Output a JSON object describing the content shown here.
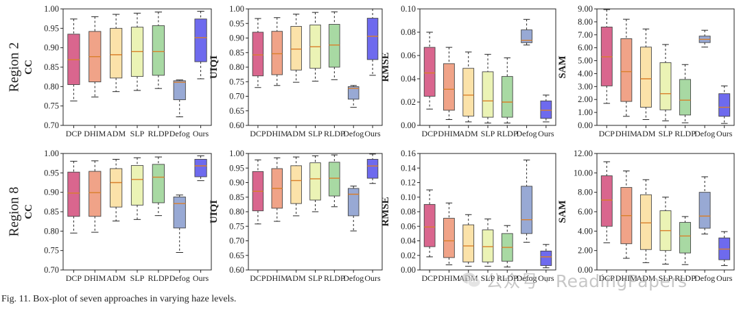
{
  "figure": {
    "caption": "Fig. 11.   Box-plot of seven approaches in varying haze levels.",
    "watermark": "公众号 · ReadingPapers"
  },
  "chart_data": [
    {
      "type": "box",
      "row_label": "Region 2",
      "ylabel": "CC",
      "ylim": [
        0.7,
        1.0
      ],
      "yticks": [
        "0.70",
        "0.75",
        "0.80",
        "0.85",
        "0.90",
        "0.95",
        "1.00"
      ],
      "tickvals": [
        0.7,
        0.75,
        0.8,
        0.85,
        0.9,
        0.95,
        1.0
      ],
      "categories": [
        "DCP",
        "DHIM",
        "ADM",
        "SLP",
        "RLDP",
        "Defog",
        "Ours"
      ],
      "boxes": [
        {
          "min": 0.763,
          "q1": 0.805,
          "median": 0.869,
          "q3": 0.935,
          "max": 0.974
        },
        {
          "min": 0.773,
          "q1": 0.812,
          "median": 0.877,
          "q3": 0.942,
          "max": 0.98
        },
        {
          "min": 0.787,
          "q1": 0.822,
          "median": 0.882,
          "q3": 0.95,
          "max": 0.986
        },
        {
          "min": 0.79,
          "q1": 0.826,
          "median": 0.89,
          "q3": 0.953,
          "max": 0.989
        },
        {
          "min": 0.795,
          "q1": 0.829,
          "median": 0.89,
          "q3": 0.957,
          "max": 0.992
        },
        {
          "min": 0.722,
          "q1": 0.766,
          "median": 0.811,
          "q3": 0.815,
          "max": 0.817
        },
        {
          "min": 0.82,
          "q1": 0.864,
          "median": 0.926,
          "q3": 0.974,
          "max": 0.994
        }
      ]
    },
    {
      "type": "box",
      "row_label": "Region 2",
      "ylabel": "UIQI",
      "ylim": [
        0.6,
        1.0
      ],
      "yticks": [
        "0.60",
        "0.65",
        "0.70",
        "0.75",
        "0.80",
        "0.85",
        "0.90",
        "0.95",
        "1.00"
      ],
      "tickvals": [
        0.6,
        0.65,
        0.7,
        0.75,
        0.8,
        0.85,
        0.9,
        0.95,
        1.0
      ],
      "categories": [
        "DCP",
        "DHIM",
        "ADM",
        "SLP",
        "RLDP",
        "Defog",
        "Ours"
      ],
      "boxes": [
        {
          "min": 0.73,
          "q1": 0.77,
          "median": 0.842,
          "q3": 0.92,
          "max": 0.967
        },
        {
          "min": 0.737,
          "q1": 0.774,
          "median": 0.846,
          "q3": 0.923,
          "max": 0.97
        },
        {
          "min": 0.748,
          "q1": 0.79,
          "median": 0.862,
          "q3": 0.94,
          "max": 0.982
        },
        {
          "min": 0.752,
          "q1": 0.796,
          "median": 0.87,
          "q3": 0.945,
          "max": 0.988
        },
        {
          "min": 0.757,
          "q1": 0.8,
          "median": 0.876,
          "q3": 0.947,
          "max": 0.99
        },
        {
          "min": 0.662,
          "q1": 0.69,
          "median": 0.727,
          "q3": 0.733,
          "max": 0.737
        },
        {
          "min": 0.772,
          "q1": 0.826,
          "median": 0.906,
          "q3": 0.968,
          "max": 1.0
        }
      ]
    },
    {
      "type": "box",
      "row_label": "Region 2",
      "ylabel": "RMSE",
      "ylim": [
        0.0,
        0.1
      ],
      "yticks": [
        "0.00",
        "0.02",
        "0.04",
        "0.06",
        "0.08",
        "0.10"
      ],
      "tickvals": [
        0.0,
        0.02,
        0.04,
        0.06,
        0.08,
        0.1
      ],
      "categories": [
        "DCP",
        "DHIM",
        "ADM",
        "SLP",
        "RLDP",
        "Defog",
        "Ours"
      ],
      "boxes": [
        {
          "min": 0.014,
          "q1": 0.025,
          "median": 0.045,
          "q3": 0.067,
          "max": 0.08
        },
        {
          "min": 0.005,
          "q1": 0.013,
          "median": 0.031,
          "q3": 0.053,
          "max": 0.067
        },
        {
          "min": 0.003,
          "q1": 0.008,
          "median": 0.026,
          "q3": 0.049,
          "max": 0.063
        },
        {
          "min": 0.002,
          "q1": 0.007,
          "median": 0.021,
          "q3": 0.046,
          "max": 0.061
        },
        {
          "min": 0.002,
          "q1": 0.007,
          "median": 0.02,
          "q3": 0.042,
          "max": 0.058
        },
        {
          "min": 0.069,
          "q1": 0.071,
          "median": 0.073,
          "q3": 0.082,
          "max": 0.091
        },
        {
          "min": 0.003,
          "q1": 0.006,
          "median": 0.013,
          "q3": 0.021,
          "max": 0.026
        }
      ]
    },
    {
      "type": "box",
      "row_label": "Region 2",
      "ylabel": "SAM",
      "ylim": [
        0.0,
        9.0
      ],
      "yticks": [
        "0.00",
        "1.00",
        "2.00",
        "3.00",
        "4.00",
        "5.00",
        "6.00",
        "7.00",
        "8.00",
        "9.00"
      ],
      "tickvals": [
        0,
        1,
        2,
        3,
        4,
        5,
        6,
        7,
        8,
        9
      ],
      "categories": [
        "DCP",
        "DHIM",
        "ADM",
        "SLP",
        "RLDP",
        "Defog",
        "Ours"
      ],
      "boxes": [
        {
          "min": 1.7,
          "q1": 3.05,
          "median": 5.3,
          "q3": 7.6,
          "max": 8.95
        },
        {
          "min": 0.7,
          "q1": 1.85,
          "median": 4.15,
          "q3": 6.7,
          "max": 8.2
        },
        {
          "min": 0.45,
          "q1": 1.4,
          "median": 3.6,
          "q3": 6.05,
          "max": 7.45
        },
        {
          "min": 0.35,
          "q1": 1.2,
          "median": 2.45,
          "q3": 4.85,
          "max": 6.25
        },
        {
          "min": 0.2,
          "q1": 0.8,
          "median": 1.95,
          "q3": 3.55,
          "max": 4.7
        },
        {
          "min": 6.05,
          "q1": 6.4,
          "median": 6.65,
          "q3": 6.9,
          "max": 7.35
        },
        {
          "min": 0.15,
          "q1": 0.7,
          "median": 1.4,
          "q3": 2.45,
          "max": 3.05
        }
      ]
    },
    {
      "type": "box",
      "row_label": "Region 8",
      "ylabel": "CC",
      "ylim": [
        0.7,
        1.0
      ],
      "yticks": [
        "0.70",
        "0.75",
        "0.80",
        "0.85",
        "0.90",
        "0.95",
        "1.00"
      ],
      "tickvals": [
        0.7,
        0.75,
        0.8,
        0.85,
        0.9,
        0.95,
        1.0
      ],
      "categories": [
        "DCP",
        "DHIM",
        "ADM",
        "SLP",
        "RLDP",
        "Defog",
        "Ours"
      ],
      "boxes": [
        {
          "min": 0.795,
          "q1": 0.838,
          "median": 0.898,
          "q3": 0.952,
          "max": 0.98
        },
        {
          "min": 0.797,
          "q1": 0.838,
          "median": 0.899,
          "q3": 0.954,
          "max": 0.981
        },
        {
          "min": 0.826,
          "q1": 0.862,
          "median": 0.925,
          "q3": 0.961,
          "max": 0.985
        },
        {
          "min": 0.83,
          "q1": 0.867,
          "median": 0.933,
          "q3": 0.969,
          "max": 0.989
        },
        {
          "min": 0.84,
          "q1": 0.873,
          "median": 0.939,
          "q3": 0.972,
          "max": 0.991
        },
        {
          "min": 0.745,
          "q1": 0.808,
          "median": 0.871,
          "q3": 0.888,
          "max": 0.893
        },
        {
          "min": 0.93,
          "q1": 0.94,
          "median": 0.968,
          "q3": 0.985,
          "max": 0.994
        }
      ]
    },
    {
      "type": "box",
      "row_label": "Region 8",
      "ylabel": "UIQI",
      "ylim": [
        0.6,
        1.0
      ],
      "yticks": [
        "0.60",
        "0.65",
        "0.70",
        "0.75",
        "0.80",
        "0.85",
        "0.90",
        "0.95",
        "1.00"
      ],
      "tickvals": [
        0.6,
        0.65,
        0.7,
        0.75,
        0.8,
        0.85,
        0.9,
        0.95,
        1.0
      ],
      "categories": [
        "DCP",
        "DHIM",
        "ADM",
        "SLP",
        "RLDP",
        "Defog",
        "Ours"
      ],
      "boxes": [
        {
          "min": 0.758,
          "q1": 0.803,
          "median": 0.87,
          "q3": 0.938,
          "max": 0.978
        },
        {
          "min": 0.767,
          "q1": 0.812,
          "median": 0.88,
          "q3": 0.948,
          "max": 0.985
        },
        {
          "min": 0.786,
          "q1": 0.828,
          "median": 0.907,
          "q3": 0.958,
          "max": 0.988
        },
        {
          "min": 0.8,
          "q1": 0.84,
          "median": 0.913,
          "q3": 0.968,
          "max": 0.992
        },
        {
          "min": 0.817,
          "q1": 0.854,
          "median": 0.915,
          "q3": 0.97,
          "max": 0.995
        },
        {
          "min": 0.734,
          "q1": 0.786,
          "median": 0.86,
          "q3": 0.88,
          "max": 0.888
        },
        {
          "min": 0.897,
          "q1": 0.915,
          "median": 0.957,
          "q3": 0.98,
          "max": 0.998
        }
      ]
    },
    {
      "type": "box",
      "row_label": "Region 8",
      "ylabel": "RMSE",
      "ylim": [
        0.0,
        0.16
      ],
      "yticks": [
        "0.00",
        "0.02",
        "0.04",
        "0.06",
        "0.08",
        "0.10",
        "0.12",
        "0.14",
        "0.16"
      ],
      "tickvals": [
        0.0,
        0.02,
        0.04,
        0.06,
        0.08,
        0.1,
        0.12,
        0.14,
        0.16
      ],
      "categories": [
        "DCP",
        "DHIM",
        "ADM",
        "SLP",
        "RLDP",
        "Defog",
        "Ours"
      ],
      "boxes": [
        {
          "min": 0.018,
          "q1": 0.032,
          "median": 0.059,
          "q3": 0.09,
          "max": 0.11
        },
        {
          "min": 0.007,
          "q1": 0.017,
          "median": 0.04,
          "q3": 0.071,
          "max": 0.092
        },
        {
          "min": 0.005,
          "q1": 0.011,
          "median": 0.033,
          "q3": 0.062,
          "max": 0.076
        },
        {
          "min": 0.005,
          "q1": 0.011,
          "median": 0.032,
          "q3": 0.055,
          "max": 0.07
        },
        {
          "min": 0.004,
          "q1": 0.012,
          "median": 0.031,
          "q3": 0.05,
          "max": 0.061
        },
        {
          "min": 0.038,
          "q1": 0.05,
          "median": 0.069,
          "q3": 0.115,
          "max": 0.151
        },
        {
          "min": 0.003,
          "q1": 0.006,
          "median": 0.018,
          "q3": 0.026,
          "max": 0.035
        }
      ]
    },
    {
      "type": "box",
      "row_label": "Region 8",
      "ylabel": "SAM",
      "ylim": [
        0.0,
        12.0
      ],
      "yticks": [
        "0.00",
        "2.00",
        "4.00",
        "6.00",
        "8.00",
        "10.00",
        "12.00"
      ],
      "tickvals": [
        0,
        2,
        4,
        6,
        8,
        10,
        12
      ],
      "categories": [
        "DCP",
        "DHIM",
        "ADM",
        "SLP",
        "RLDP",
        "Defog",
        "Ours"
      ],
      "boxes": [
        {
          "min": 2.8,
          "q1": 4.5,
          "median": 7.2,
          "q3": 9.7,
          "max": 11.15
        },
        {
          "min": 1.2,
          "q1": 2.7,
          "median": 5.6,
          "q3": 8.5,
          "max": 10.2
        },
        {
          "min": 0.75,
          "q1": 2.1,
          "median": 4.85,
          "q3": 7.75,
          "max": 9.3
        },
        {
          "min": 0.6,
          "q1": 2.0,
          "median": 4.05,
          "q3": 6.1,
          "max": 7.5
        },
        {
          "min": 0.55,
          "q1": 1.75,
          "median": 3.5,
          "q3": 4.9,
          "max": 5.5
        },
        {
          "min": 3.7,
          "q1": 4.3,
          "median": 5.55,
          "q3": 8.0,
          "max": 9.6
        },
        {
          "min": 0.45,
          "q1": 1.05,
          "median": 2.15,
          "q3": 3.3,
          "max": 3.95
        }
      ]
    }
  ],
  "style": {
    "box_fills": [
      "#d9668e",
      "#f0a388",
      "#fbe2a9",
      "#ebf3b5",
      "#a8d9a3",
      "#98a9d4",
      "#6e6aee"
    ],
    "median_color": "#d97f2a",
    "edge_color": "#444444",
    "whisker_color": "#222222"
  }
}
